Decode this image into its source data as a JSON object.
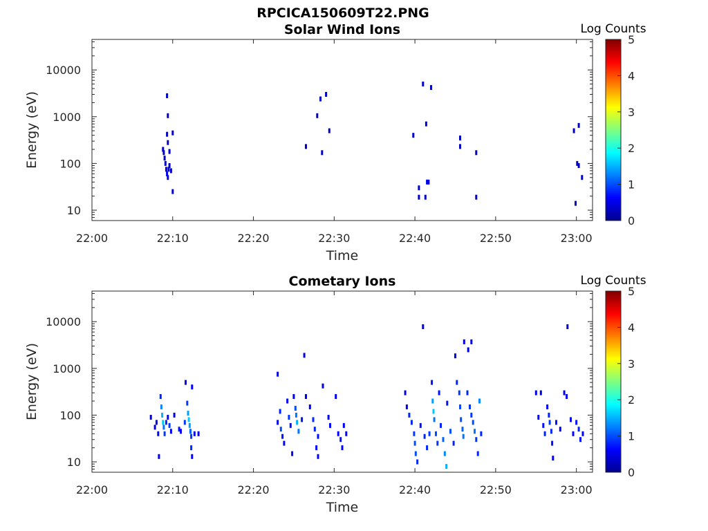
{
  "figure_title": "RPCICA150609T22.PNG",
  "colormap": [
    "#00008f",
    "#0000ff",
    "#0080ff",
    "#00ffff",
    "#80ff80",
    "#ffff00",
    "#ff8000",
    "#ff0000",
    "#800000"
  ],
  "chart_data": [
    {
      "type": "heatmap",
      "title": "Solar Wind Ions",
      "xlabel": "Time",
      "ylabel": "Energy (eV)",
      "yscale": "log",
      "xlim": [
        "22:00",
        "23:02"
      ],
      "ylim": [
        6,
        45000
      ],
      "x_ticks": [
        "22:00",
        "22:10",
        "22:20",
        "22:30",
        "22:40",
        "22:50",
        "23:00"
      ],
      "y_ticks": [
        "10",
        "100",
        "1000",
        "10000"
      ],
      "colorbar": {
        "label": "Log Counts",
        "range": [
          0,
          5
        ],
        "ticks": [
          "0",
          "1",
          "2",
          "3",
          "4",
          "5"
        ]
      },
      "points": [
        [
          "22:08.8",
          200,
          0.3
        ],
        [
          "22:08.9",
          170,
          0.3
        ],
        [
          "22:09.0",
          130,
          0.3
        ],
        [
          "22:09.1",
          100,
          0.3
        ],
        [
          "22:09.2",
          75,
          0.5
        ],
        [
          "22:09.3",
          60,
          0.5
        ],
        [
          "22:09.4",
          50,
          0.5
        ],
        [
          "22:09.5",
          75,
          0.4
        ],
        [
          "22:09.6",
          90,
          0.3
        ],
        [
          "22:09.8",
          70,
          0.3
        ],
        [
          "22:09.6",
          180,
          0.3
        ],
        [
          "22:10.0",
          25,
          0.3
        ],
        [
          "22:09.4",
          280,
          0.3
        ],
        [
          "22:09.3",
          420,
          0.3
        ],
        [
          "22:10.0",
          450,
          0.3
        ],
        [
          "22:09.4",
          1050,
          0.3
        ],
        [
          "22:09.3",
          2800,
          0.3
        ],
        [
          "22:26.5",
          230,
          0.3
        ],
        [
          "22:27.9",
          1050,
          0.3
        ],
        [
          "22:28.3",
          2400,
          0.3
        ],
        [
          "22:28.5",
          170,
          0.3
        ],
        [
          "22:29.0",
          3000,
          0.3
        ],
        [
          "22:29.4",
          500,
          0.3
        ],
        [
          "22:39.8",
          400,
          0.3
        ],
        [
          "22:40.5",
          30,
          0.3
        ],
        [
          "22:40.5",
          19,
          0.3
        ],
        [
          "22:41.0",
          5000,
          0.3
        ],
        [
          "22:41.3",
          19,
          0.3
        ],
        [
          "22:41.4",
          700,
          0.3
        ],
        [
          "22:41.5",
          40,
          0.5
        ],
        [
          "22:41.7",
          40,
          0.5
        ],
        [
          "22:42.0",
          4200,
          0.3
        ],
        [
          "22:45.6",
          350,
          0.3
        ],
        [
          "22:45.6",
          230,
          0.3
        ],
        [
          "22:47.6",
          170,
          0.3
        ],
        [
          "22:47.6",
          19,
          0.3
        ],
        [
          "22:59.7",
          500,
          0.3
        ],
        [
          "22:59.9",
          14,
          0.3
        ],
        [
          "23:00.1",
          100,
          0.3
        ],
        [
          "23:00.3",
          90,
          0.3
        ],
        [
          "23:00.3",
          650,
          0.3
        ],
        [
          "23:00.7",
          50,
          0.3
        ]
      ]
    },
    {
      "type": "heatmap",
      "title": "Cometary Ions",
      "xlabel": "Time",
      "ylabel": "Energy (eV)",
      "yscale": "log",
      "xlim": [
        "22:00",
        "23:02"
      ],
      "ylim": [
        6,
        45000
      ],
      "x_ticks": [
        "22:00",
        "22:10",
        "22:20",
        "22:30",
        "22:40",
        "22:50",
        "23:00"
      ],
      "y_ticks": [
        "10",
        "100",
        "1000",
        "10000"
      ],
      "colorbar": {
        "label": "Log Counts",
        "range": [
          0,
          5
        ],
        "ticks": [
          "0",
          "1",
          "2",
          "3",
          "4",
          "5"
        ]
      },
      "points": [
        [
          "22:07.3",
          90,
          0.4
        ],
        [
          "22:07.8",
          55,
          0.5
        ],
        [
          "22:08.0",
          70,
          0.5
        ],
        [
          "22:08.2",
          40,
          0.6
        ],
        [
          "22:08.3",
          13,
          0.5
        ],
        [
          "22:08.5",
          250,
          0.8
        ],
        [
          "22:08.6",
          150,
          1.3
        ],
        [
          "22:08.7",
          100,
          1.5
        ],
        [
          "22:08.8",
          70,
          1.6
        ],
        [
          "22:08.9",
          55,
          1.2
        ],
        [
          "22:09.0",
          40,
          0.9
        ],
        [
          "22:09.2",
          70,
          0.8
        ],
        [
          "22:09.4",
          90,
          0.6
        ],
        [
          "22:09.6",
          60,
          0.9
        ],
        [
          "22:09.8",
          45,
          0.6
        ],
        [
          "22:10.2",
          100,
          0.5
        ],
        [
          "22:10.8",
          50,
          0.7
        ],
        [
          "22:11.0",
          45,
          0.6
        ],
        [
          "22:11.5",
          70,
          0.9
        ],
        [
          "22:11.6",
          500,
          0.6
        ],
        [
          "22:11.8",
          180,
          0.9
        ],
        [
          "22:11.9",
          110,
          1.4
        ],
        [
          "22:12.0",
          80,
          1.6
        ],
        [
          "22:12.1",
          60,
          1.4
        ],
        [
          "22:12.2",
          45,
          1.1
        ],
        [
          "22:12.3",
          35,
          0.9
        ],
        [
          "22:12.3",
          20,
          0.8
        ],
        [
          "22:12.4",
          13,
          0.6
        ],
        [
          "22:12.4",
          400,
          0.6
        ],
        [
          "22:12.7",
          40,
          0.5
        ],
        [
          "22:13.2",
          40,
          0.5
        ],
        [
          "22:23.0",
          750,
          0.4
        ],
        [
          "22:23.0",
          70,
          0.5
        ],
        [
          "22:23.3",
          120,
          0.8
        ],
        [
          "22:23.4",
          50,
          1.0
        ],
        [
          "22:23.6",
          35,
          0.7
        ],
        [
          "22:23.8",
          25,
          0.6
        ],
        [
          "22:24.2",
          200,
          0.6
        ],
        [
          "22:24.4",
          90,
          0.9
        ],
        [
          "22:24.6",
          60,
          0.7
        ],
        [
          "22:24.8",
          15,
          0.6
        ],
        [
          "22:25.0",
          250,
          0.6
        ],
        [
          "22:25.2",
          140,
          1.0
        ],
        [
          "22:25.3",
          100,
          1.2
        ],
        [
          "22:25.4",
          70,
          1.5
        ],
        [
          "22:25.6",
          45,
          1.2
        ],
        [
          "22:26.0",
          80,
          0.7
        ],
        [
          "22:26.3",
          1900,
          0.5
        ],
        [
          "22:26.5",
          250,
          0.5
        ],
        [
          "22:27.0",
          150,
          0.6
        ],
        [
          "22:27.4",
          80,
          0.8
        ],
        [
          "22:27.6",
          50,
          0.8
        ],
        [
          "22:27.8",
          20,
          0.6
        ],
        [
          "22:28.0",
          13,
          0.6
        ],
        [
          "22:28.0",
          35,
          0.7
        ],
        [
          "22:28.6",
          420,
          0.4
        ],
        [
          "22:29.3",
          90,
          0.5
        ],
        [
          "22:29.5",
          60,
          0.6
        ],
        [
          "22:30.2",
          250,
          0.5
        ],
        [
          "22:30.5",
          40,
          0.6
        ],
        [
          "22:30.8",
          30,
          0.7
        ],
        [
          "22:31.0",
          20,
          0.6
        ],
        [
          "22:31.2",
          60,
          0.6
        ],
        [
          "22:31.5",
          40,
          0.6
        ],
        [
          "22:38.8",
          300,
          0.5
        ],
        [
          "22:39.0",
          150,
          0.6
        ],
        [
          "22:39.3",
          100,
          0.8
        ],
        [
          "22:39.6",
          70,
          0.8
        ],
        [
          "22:39.9",
          40,
          0.9
        ],
        [
          "22:40.0",
          25,
          1.0
        ],
        [
          "22:40.1",
          15,
          1.0
        ],
        [
          "22:40.3",
          10,
          0.8
        ],
        [
          "22:40.7",
          60,
          0.7
        ],
        [
          "22:41.0",
          7800,
          0.4
        ],
        [
          "22:41.2",
          35,
          0.8
        ],
        [
          "22:41.5",
          20,
          0.8
        ],
        [
          "22:41.8",
          40,
          0.9
        ],
        [
          "22:42.1",
          500,
          0.7
        ],
        [
          "22:42.2",
          200,
          1.4
        ],
        [
          "22:42.3",
          120,
          1.6
        ],
        [
          "22:42.4",
          80,
          1.2
        ],
        [
          "22:42.6",
          40,
          1.0
        ],
        [
          "22:42.8",
          25,
          0.9
        ],
        [
          "22:43.0",
          300,
          0.7
        ],
        [
          "22:43.2",
          60,
          0.8
        ],
        [
          "22:43.5",
          30,
          1.1
        ],
        [
          "22:43.7",
          15,
          1.3
        ],
        [
          "22:43.9",
          8,
          1.5
        ],
        [
          "22:44.0",
          180,
          0.7
        ],
        [
          "22:44.4",
          45,
          1.0
        ],
        [
          "22:44.8",
          25,
          0.8
        ],
        [
          "22:45.2",
          500,
          0.8
        ],
        [
          "22:45.5",
          300,
          0.9
        ],
        [
          "22:45.6",
          150,
          1.0
        ],
        [
          "22:45.7",
          80,
          1.0
        ],
        [
          "22:45.9",
          50,
          1.1
        ],
        [
          "22:46.0",
          35,
          1.2
        ],
        [
          "22:45.0",
          1850,
          0.5
        ],
        [
          "22:46.1",
          3700,
          0.5
        ],
        [
          "22:46.6",
          2500,
          0.4
        ],
        [
          "22:47.0",
          3700,
          0.5
        ],
        [
          "22:46.5",
          300,
          0.8
        ],
        [
          "22:46.8",
          150,
          0.9
        ],
        [
          "22:47.0",
          100,
          0.9
        ],
        [
          "22:47.2",
          70,
          1.0
        ],
        [
          "22:47.4",
          45,
          1.2
        ],
        [
          "22:47.6",
          30,
          0.9
        ],
        [
          "22:47.8",
          15,
          0.8
        ],
        [
          "22:48.0",
          200,
          1.3
        ],
        [
          "22:48.2",
          40,
          0.8
        ],
        [
          "22:55.0",
          300,
          0.5
        ],
        [
          "22:55.3",
          90,
          0.6
        ],
        [
          "22:55.6",
          300,
          0.5
        ],
        [
          "22:55.9",
          60,
          0.7
        ],
        [
          "22:56.1",
          40,
          0.8
        ],
        [
          "22:56.4",
          150,
          0.6
        ],
        [
          "22:56.6",
          100,
          0.8
        ],
        [
          "22:56.7",
          70,
          0.9
        ],
        [
          "22:56.9",
          45,
          0.8
        ],
        [
          "22:57.0",
          25,
          0.7
        ],
        [
          "22:57.1",
          12,
          0.6
        ],
        [
          "22:57.5",
          70,
          0.7
        ],
        [
          "22:58.0",
          50,
          0.6
        ],
        [
          "22:58.5",
          300,
          0.5
        ],
        [
          "22:58.8",
          250,
          0.5
        ],
        [
          "22:58.9",
          7800,
          0.4
        ],
        [
          "22:59.3",
          80,
          0.5
        ],
        [
          "22:59.6",
          40,
          0.6
        ],
        [
          "23:00.0",
          70,
          0.7
        ],
        [
          "23:00.3",
          50,
          0.8
        ],
        [
          "23:00.5",
          30,
          0.7
        ],
        [
          "23:00.8",
          40,
          0.6
        ]
      ]
    }
  ]
}
